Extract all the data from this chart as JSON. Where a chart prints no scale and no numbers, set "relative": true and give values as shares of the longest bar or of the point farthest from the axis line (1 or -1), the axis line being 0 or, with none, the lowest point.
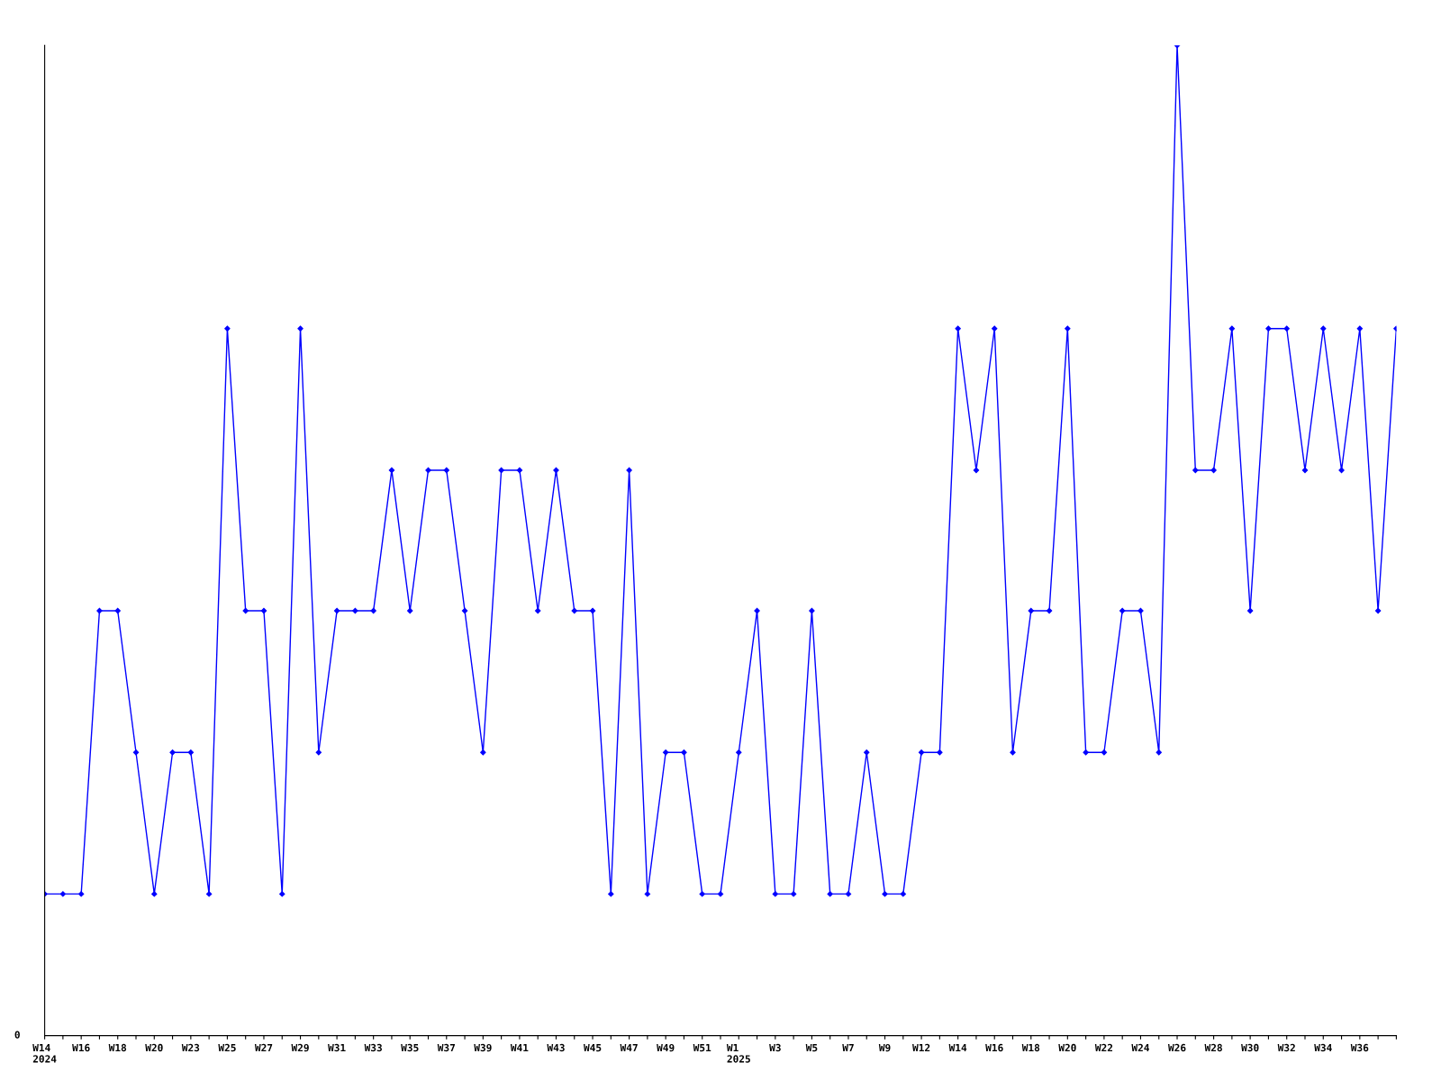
{
  "chart_data": {
    "type": "line",
    "relative": true,
    "marker": "diamond",
    "line_style": "solid",
    "grid": false,
    "legend": false,
    "categories": [
      "W14\n2024",
      null,
      "W16",
      null,
      "W18",
      null,
      "W20",
      null,
      "W23",
      null,
      "W25",
      null,
      "W27",
      null,
      "W29",
      null,
      "W31",
      null,
      "W33",
      null,
      "W35",
      null,
      "W37",
      null,
      "W39",
      null,
      "W41",
      null,
      "W43",
      null,
      "W45",
      null,
      "W47",
      null,
      "W49",
      null,
      "W51",
      null,
      "W1\n2025",
      null,
      "W3",
      null,
      "W5",
      null,
      "W7",
      null,
      "W9",
      null,
      "W12",
      null,
      "W14",
      null,
      "W16",
      null,
      "W18",
      null,
      "W20",
      null,
      "W22",
      null,
      "W24",
      null,
      "W26",
      null,
      "W28",
      null,
      "W30",
      null,
      "W32",
      null,
      "W34",
      null,
      "W36",
      null,
      null
    ],
    "series": [
      {
        "color": "#0000ff",
        "values": [
          0.143,
          0.143,
          0.143,
          0.429,
          0.429,
          0.286,
          0.143,
          0.286,
          0.286,
          0.143,
          0.714,
          0.429,
          0.429,
          0.143,
          0.714,
          0.286,
          0.429,
          0.429,
          0.429,
          0.571,
          0.429,
          0.571,
          0.571,
          0.429,
          0.286,
          0.571,
          0.571,
          0.429,
          0.571,
          0.429,
          0.429,
          0.143,
          0.571,
          0.143,
          0.286,
          0.286,
          0.143,
          0.143,
          0.286,
          0.429,
          0.143,
          0.143,
          0.429,
          0.143,
          0.143,
          0.286,
          0.143,
          0.143,
          0.286,
          0.286,
          0.714,
          0.571,
          0.714,
          0.286,
          0.429,
          0.429,
          0.714,
          0.286,
          0.286,
          0.429,
          0.429,
          0.286,
          1,
          0.571,
          0.571,
          0.714,
          0.429,
          0.714,
          0.714,
          0.571,
          0.714,
          0.571,
          0.714,
          0.429,
          0.714
        ]
      }
    ],
    "annotations": [
      "0"
    ]
  }
}
